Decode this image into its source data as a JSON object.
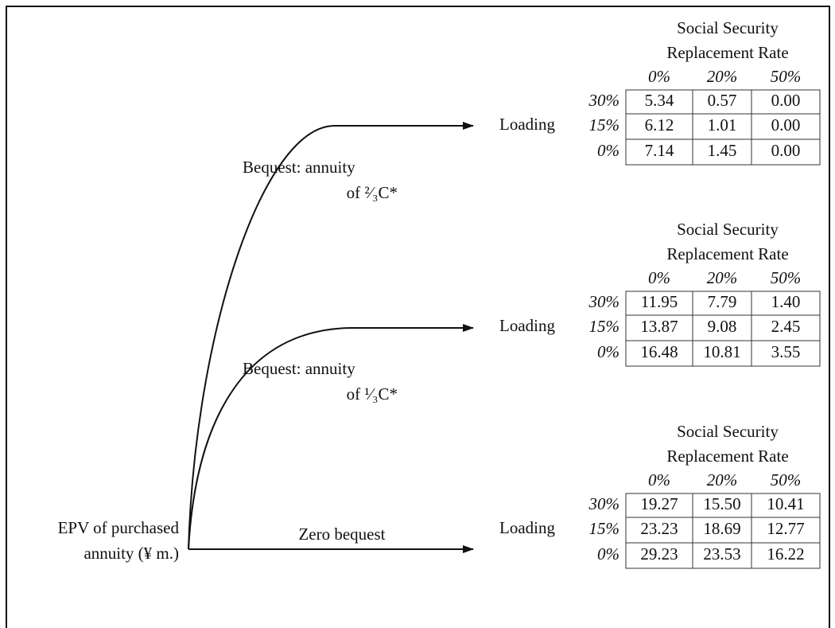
{
  "root_label": [
    "EPV of purchased",
    "annuity (¥ m.)"
  ],
  "branches": [
    {
      "label": [
        "Bequest: annuity",
        "of ²⁄₃C*"
      ],
      "target": "Loading",
      "table": {
        "title": [
          "Social Security",
          "Replacement Rate"
        ],
        "columns": [
          "0%",
          "20%",
          "50%"
        ],
        "rows": [
          {
            "label": "30%",
            "cells": [
              "5.34",
              "0.57",
              "0.00"
            ]
          },
          {
            "label": "15%",
            "cells": [
              "6.12",
              "1.01",
              "0.00"
            ]
          },
          {
            "label": "0%",
            "cells": [
              "7.14",
              "1.45",
              "0.00"
            ]
          }
        ]
      }
    },
    {
      "label": [
        "Bequest: annuity",
        "of ¹⁄₃C*"
      ],
      "target": "Loading",
      "table": {
        "title": [
          "Social Security",
          "Replacement Rate"
        ],
        "columns": [
          "0%",
          "20%",
          "50%"
        ],
        "rows": [
          {
            "label": "30%",
            "cells": [
              "11.95",
              "7.79",
              "1.40"
            ]
          },
          {
            "label": "15%",
            "cells": [
              "13.87",
              "9.08",
              "2.45"
            ]
          },
          {
            "label": "0%",
            "cells": [
              "16.48",
              "10.81",
              "3.55"
            ]
          }
        ]
      }
    },
    {
      "label": [
        "Zero bequest"
      ],
      "target": "Loading",
      "table": {
        "title": [
          "Social Security",
          "Replacement Rate"
        ],
        "columns": [
          "0%",
          "20%",
          "50%"
        ],
        "rows": [
          {
            "label": "30%",
            "cells": [
              "19.27",
              "15.50",
              "10.41"
            ]
          },
          {
            "label": "15%",
            "cells": [
              "23.23",
              "18.69",
              "12.77"
            ]
          },
          {
            "label": "0%",
            "cells": [
              "29.23",
              "23.53",
              "16.22"
            ]
          }
        ]
      }
    }
  ]
}
